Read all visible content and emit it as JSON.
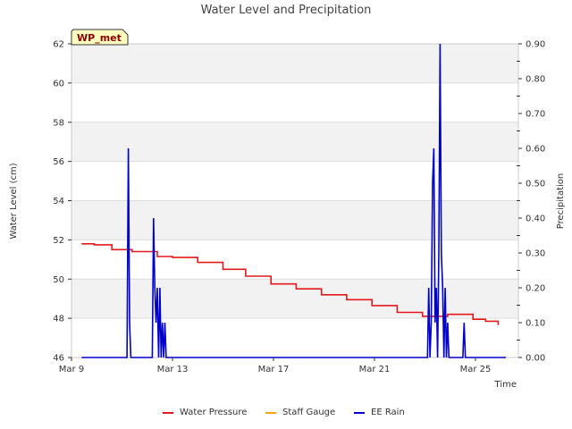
{
  "chart_data": {
    "type": "line",
    "title": "Water Level and Precipitation",
    "badge": "WP_met",
    "xlabel": "Time",
    "ylabel": "Water Level (cm)",
    "y2label": "Precipitation",
    "x_ticks": [
      {
        "day": 9,
        "label": "Mar 9"
      },
      {
        "day": 13,
        "label": "Mar 13"
      },
      {
        "day": 17,
        "label": "Mar 17"
      },
      {
        "day": 21,
        "label": "Mar 21"
      },
      {
        "day": 25,
        "label": "Mar 25"
      }
    ],
    "xlim": [
      9,
      26.7
    ],
    "ylim": [
      46,
      62
    ],
    "y_ticks": [
      46,
      48,
      50,
      52,
      54,
      56,
      58,
      60,
      62
    ],
    "y2lim": [
      0,
      0.9
    ],
    "y2_ticks": [
      "0.00",
      "0.10",
      "0.20",
      "0.30",
      "0.40",
      "0.50",
      "0.60",
      "0.70",
      "0.80",
      "0.90"
    ],
    "legend_position": "bottom",
    "series": [
      {
        "name": "Water Pressure",
        "color": "#e31a1c",
        "axis": "left",
        "x": [
          9.4,
          9.9,
          10.6,
          11.4,
          12.4,
          13.0,
          14.0,
          15.0,
          15.9,
          16.9,
          17.9,
          18.9,
          19.9,
          20.9,
          21.9,
          22.9,
          23.9,
          24.9,
          25.4,
          25.9
        ],
        "y": [
          51.8,
          51.75,
          51.5,
          51.4,
          51.15,
          51.1,
          50.85,
          50.5,
          50.15,
          49.75,
          49.5,
          49.2,
          48.95,
          48.65,
          48.3,
          48.1,
          48.2,
          47.95,
          47.85,
          47.65
        ]
      },
      {
        "name": "Staff Gauge",
        "color": "#ffa500",
        "axis": "left",
        "x": [],
        "y": []
      },
      {
        "name": "EE Rain",
        "color": "#0000cc",
        "axis": "right",
        "x": [
          9.4,
          11.2,
          11.25,
          11.3,
          11.35,
          11.4,
          11.45,
          11.5,
          12.2,
          12.25,
          12.3,
          12.35,
          12.4,
          12.45,
          12.5,
          12.55,
          12.6,
          12.65,
          12.7,
          12.75,
          12.8,
          12.85,
          23.1,
          23.15,
          23.2,
          23.25,
          23.3,
          23.35,
          23.4,
          23.45,
          23.5,
          23.55,
          23.6,
          23.65,
          23.7,
          23.75,
          23.8,
          23.85,
          23.9,
          23.95,
          24.0,
          24.05,
          24.1,
          24.15,
          24.2,
          24.5,
          24.55,
          24.6,
          24.65,
          26.2
        ],
        "y": [
          0,
          0,
          0.6,
          0.1,
          0,
          0,
          0,
          0,
          0,
          0.4,
          0.2,
          0.1,
          0.2,
          0,
          0.2,
          0,
          0.1,
          0,
          0.1,
          0,
          0,
          0,
          0,
          0.2,
          0,
          0.1,
          0.5,
          0.6,
          0.1,
          0.2,
          0,
          0.3,
          0.9,
          0.3,
          0.2,
          0,
          0.2,
          0,
          0.1,
          0,
          0,
          0,
          0,
          0,
          0,
          0,
          0.1,
          0,
          0,
          0
        ]
      }
    ]
  }
}
